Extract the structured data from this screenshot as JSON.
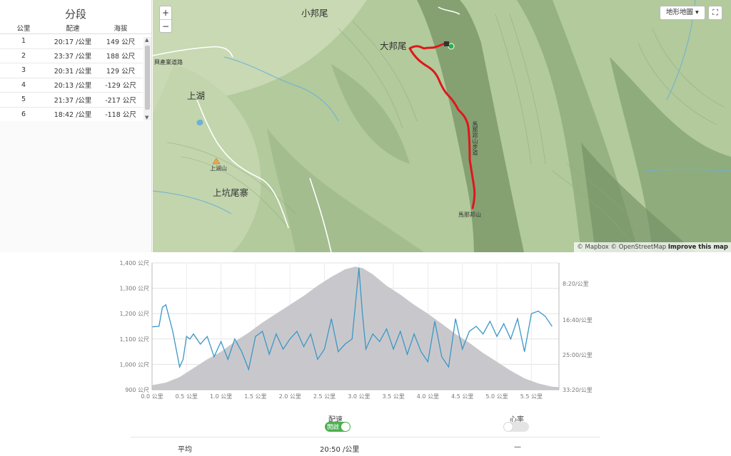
{
  "splits": {
    "title": "分段",
    "headers": {
      "km": "公里",
      "pace": "配速",
      "elev": "海拔"
    },
    "rows": [
      {
        "km": "1",
        "pace": "20:17 /公里",
        "elev": "149 公尺"
      },
      {
        "km": "2",
        "pace": "23:37 /公里",
        "elev": "188 公尺"
      },
      {
        "km": "3",
        "pace": "20:31 /公里",
        "elev": "129 公尺"
      },
      {
        "km": "4",
        "pace": "20:13 /公里",
        "elev": "-129 公尺"
      },
      {
        "km": "5",
        "pace": "21:37 /公里",
        "elev": "-217 公尺"
      },
      {
        "km": "6",
        "pace": "18:42 /公里",
        "elev": "-118 公尺"
      }
    ]
  },
  "map": {
    "zoom_in": "+",
    "zoom_out": "−",
    "map_type": "地形地圖",
    "fullscreen_icon": "⛶",
    "attribution": {
      "mapbox": "© Mapbox",
      "osm": "© OpenStreetMap",
      "improve": "Improve this map"
    },
    "places": {
      "xiaobangwei": "小邦尾",
      "dabangwei": "大邦尾",
      "shanghu": "上湖",
      "shanghushan": "上湖山",
      "shangkengweizhai": "上坑尾寨",
      "mabangbangshan": "馬那邦山",
      "road": "興產業道路",
      "trail": "馬那邦山步道"
    },
    "colors": {
      "route": "#e0161b",
      "water": "#6fb0d8",
      "road": "#ffffff"
    }
  },
  "chart_data": {
    "type": "area",
    "x_unit": "公里",
    "x_ticks": [
      "0.0 公里",
      "0.5 公里",
      "1.0 公里",
      "1.5 公里",
      "2.0 公里",
      "2.5 公里",
      "3.0 公里",
      "3.5 公里",
      "4.0 公里",
      "4.5 公里",
      "5.0 公里",
      "5.5 公里"
    ],
    "y_left_ticks": [
      "900 公尺",
      "1,000 公尺",
      "1,100 公尺",
      "1,200 公尺",
      "1,300 公尺",
      "1,400 公尺"
    ],
    "y_right_ticks": [
      "8:20/公里",
      "16:40/公里",
      "25:00/公里",
      "33:20/公里"
    ],
    "xlim": [
      0,
      5.9
    ],
    "ylim_left": [
      900,
      1400
    ],
    "series": [
      {
        "name": "海拔",
        "color": "#c8c8cc",
        "x": [
          0,
          0.2,
          0.4,
          0.6,
          0.8,
          1.0,
          1.2,
          1.4,
          1.6,
          1.8,
          2.0,
          2.2,
          2.4,
          2.6,
          2.8,
          2.95,
          3.05,
          3.2,
          3.4,
          3.6,
          3.8,
          4.0,
          4.2,
          4.4,
          4.6,
          4.8,
          5.0,
          5.2,
          5.4,
          5.6,
          5.8,
          5.9
        ],
        "values": [
          918,
          928,
          950,
          985,
          1020,
          1050,
          1090,
          1125,
          1165,
          1200,
          1235,
          1270,
          1310,
          1345,
          1375,
          1385,
          1380,
          1355,
          1310,
          1275,
          1235,
          1200,
          1160,
          1120,
          1085,
          1045,
          1010,
          975,
          945,
          925,
          912,
          910
        ]
      },
      {
        "name": "配速",
        "color": "#3b97c6",
        "x": [
          0,
          0.1,
          0.15,
          0.2,
          0.3,
          0.35,
          0.4,
          0.45,
          0.5,
          0.55,
          0.6,
          0.7,
          0.8,
          0.9,
          1.0,
          1.1,
          1.2,
          1.3,
          1.4,
          1.5,
          1.6,
          1.7,
          1.8,
          1.9,
          2.0,
          2.1,
          2.2,
          2.3,
          2.4,
          2.5,
          2.6,
          2.7,
          2.8,
          2.9,
          2.95,
          3.0,
          3.05,
          3.1,
          3.2,
          3.3,
          3.4,
          3.5,
          3.6,
          3.7,
          3.8,
          3.9,
          4.0,
          4.1,
          4.2,
          4.3,
          4.4,
          4.5,
          4.6,
          4.7,
          4.8,
          4.9,
          5.0,
          5.1,
          5.2,
          5.3,
          5.4,
          5.5,
          5.6,
          5.7,
          5.8
        ],
        "values": [
          1148,
          1150,
          1225,
          1235,
          1130,
          1060,
          990,
          1020,
          1110,
          1100,
          1120,
          1080,
          1110,
          1030,
          1090,
          1020,
          1100,
          1050,
          980,
          1110,
          1130,
          1040,
          1120,
          1060,
          1100,
          1130,
          1070,
          1120,
          1020,
          1060,
          1180,
          1050,
          1080,
          1100,
          1240,
          1380,
          1200,
          1060,
          1120,
          1090,
          1140,
          1060,
          1130,
          1040,
          1120,
          1050,
          1010,
          1170,
          1030,
          990,
          1180,
          1060,
          1130,
          1150,
          1120,
          1170,
          1110,
          1160,
          1100,
          1180,
          1050,
          1200,
          1210,
          1190,
          1150
        ]
      }
    ]
  },
  "controls": {
    "pace_label": "配速",
    "pace_state": "開啟",
    "hr_label": "心率"
  },
  "average": {
    "label": "平均",
    "pace": "20:50 /公里",
    "hr": "—"
  }
}
